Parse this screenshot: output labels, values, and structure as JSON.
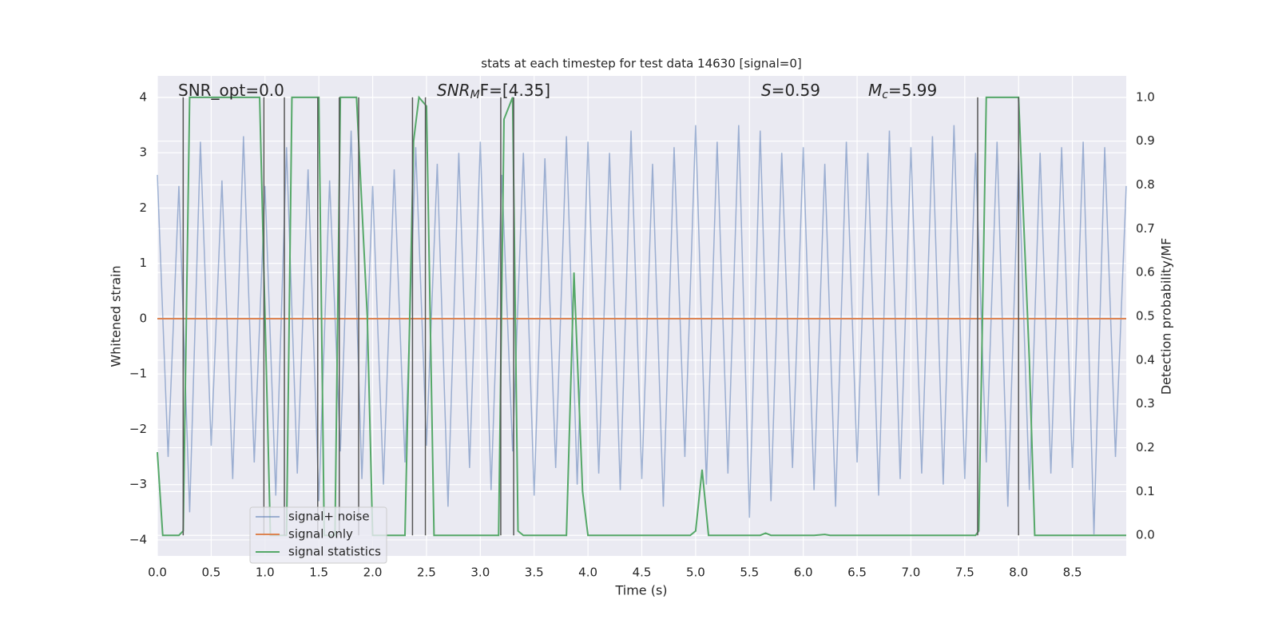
{
  "chart_data": {
    "type": "line",
    "title": "stats at each timestep for test data 14630 [signal=0]",
    "xlabel": "Time (s)",
    "ylabel": "Whitened strain",
    "y2label": "Detection probability/MF",
    "xlim": [
      0,
      9.0
    ],
    "ylim": [
      -4.29,
      4.39
    ],
    "y2lim": [
      -0.047,
      1.049
    ],
    "xticks": [
      {
        "value": 0,
        "label": "0.0"
      },
      0.5,
      {
        "value": 1,
        "label": "1.0"
      },
      1.5,
      {
        "value": 2,
        "label": "2.0"
      },
      2.5,
      {
        "value": 3,
        "label": "3.0"
      },
      3.5,
      {
        "value": 4,
        "label": "4.0"
      },
      4.5,
      {
        "value": 5,
        "label": "5.0"
      },
      5.5,
      {
        "value": 6,
        "label": "6.0"
      },
      6.5,
      {
        "value": 7,
        "label": "7.0"
      },
      7.5,
      {
        "value": 8,
        "label": "8.0"
      },
      8.5
    ],
    "yticks": [
      {
        "value": -4,
        "label": "−4"
      },
      {
        "value": -3,
        "label": "−3"
      },
      {
        "value": -2,
        "label": "−2"
      },
      {
        "value": -1,
        "label": "−1"
      },
      0,
      1,
      2,
      3,
      4
    ],
    "y2ticks": [
      {
        "value": 0,
        "label": "0.0"
      },
      0.1,
      0.2,
      0.3,
      0.4,
      0.5,
      0.6,
      0.7,
      0.8,
      0.9,
      {
        "value": 1,
        "label": "1.0"
      }
    ],
    "grid": true,
    "legend": "lower left",
    "series": [
      {
        "name": "signal+ noise",
        "color": "#4c72b0",
        "x": [
          0,
          0.1,
          0.2,
          0.3,
          0.4,
          0.5,
          0.6,
          0.7,
          0.8,
          0.9,
          1,
          1.1,
          1.2,
          1.3,
          1.4,
          1.5,
          1.6,
          1.7,
          1.8,
          1.9,
          2,
          2.1,
          2.2,
          2.3,
          2.4,
          2.5,
          2.6,
          2.7,
          2.8,
          2.9,
          3,
          3.1,
          3.2,
          3.3,
          3.4,
          3.5,
          3.6,
          3.7,
          3.8,
          3.9,
          4,
          4.1,
          4.2,
          4.3,
          4.4,
          4.5,
          4.6,
          4.7,
          4.8,
          4.9,
          5,
          5.1,
          5.2,
          5.3,
          5.4,
          5.5,
          5.6,
          5.7,
          5.8,
          5.9,
          6,
          6.1,
          6.2,
          6.3,
          6.4,
          6.5,
          6.6,
          6.7,
          6.8,
          6.9,
          7,
          7.1,
          7.2,
          7.3,
          7.4,
          7.5,
          7.6,
          7.7,
          7.8,
          7.9,
          8,
          8.1,
          8.2,
          8.3,
          8.4,
          8.5,
          8.6,
          8.7,
          8.8,
          8.9,
          9
        ],
        "values": [
          2.6,
          -2.5,
          2.4,
          -3.5,
          3.2,
          -2.3,
          2.5,
          -2.9,
          3.3,
          -2.6,
          2.4,
          -3.2,
          3.1,
          -2.8,
          2.7,
          -3.3,
          2.5,
          -2.4,
          3.4,
          -2.9,
          2.4,
          -3.0,
          2.7,
          -2.6,
          3.1,
          -2.3,
          2.8,
          -3.4,
          3.0,
          -2.7,
          3.2,
          -3.1,
          2.6,
          -2.4,
          3.0,
          -3.2,
          2.9,
          -2.7,
          3.3,
          -3.0,
          3.2,
          -2.8,
          3.0,
          -3.1,
          3.4,
          -2.9,
          2.8,
          -3.4,
          3.1,
          -2.5,
          3.5,
          -3.0,
          3.2,
          -2.8,
          3.5,
          -3.6,
          3.4,
          -3.3,
          3.0,
          -2.7,
          3.1,
          -3.1,
          2.8,
          -3.4,
          3.2,
          -2.6,
          3.0,
          -3.2,
          3.4,
          -2.9,
          3.1,
          -2.8,
          3.3,
          -3.0,
          3.5,
          -2.9,
          3.0,
          -2.6,
          3.2,
          -3.4,
          2.9,
          -3.1,
          3.0,
          -2.8,
          3.1,
          -2.7,
          3.2,
          -3.9,
          3.1,
          -2.5,
          2.4
        ]
      },
      {
        "name": "signal only",
        "color": "#dd8452",
        "x": [
          0,
          9.0
        ],
        "values": [
          0,
          0
        ]
      },
      {
        "name": "signal statistics",
        "color": "#55a868",
        "axis": "y2",
        "x": [
          0,
          0.05,
          0.2,
          0.24,
          0.3,
          0.95,
          1.0,
          1.05,
          1.2,
          1.25,
          1.5,
          1.55,
          1.65,
          1.7,
          1.85,
          1.95,
          2.0,
          2.3,
          2.38,
          2.43,
          2.5,
          2.57,
          3.17,
          3.22,
          3.3,
          3.35,
          3.4,
          3.8,
          3.87,
          3.95,
          4.0,
          4.95,
          5.0,
          5.06,
          5.12,
          5.6,
          5.65,
          5.7,
          6.1,
          6.2,
          6.25,
          7.6,
          7.63,
          7.7,
          8.0,
          8.1,
          8.15,
          9.0
        ],
        "values": [
          0.19,
          0.0,
          0.0,
          0.01,
          1.0,
          1.0,
          0.5,
          0.0,
          0.0,
          1.0,
          1.0,
          0.0,
          0.0,
          1.0,
          1.0,
          0.5,
          0.0,
          0.0,
          0.9,
          1.0,
          0.98,
          0.0,
          0.0,
          0.95,
          1.0,
          0.01,
          0.0,
          0.0,
          0.6,
          0.1,
          0.0,
          0.0,
          0.01,
          0.15,
          0.0,
          0.0,
          0.005,
          0.0,
          0.0,
          0.002,
          0.0,
          0.0,
          0.01,
          1.0,
          1.0,
          0.4,
          0.0,
          0.0
        ]
      }
    ],
    "vlines": {
      "color": "#555555",
      "x": [
        0.24,
        0.99,
        1.18,
        1.49,
        1.69,
        1.87,
        2.37,
        2.49,
        3.19,
        3.31,
        7.62,
        8.0
      ],
      "ymin": 0,
      "ymax": 1
    },
    "annotations": [
      {
        "rest": "SNR_opt=0.0"
      },
      {
        "base": "SNR",
        "sub": "M",
        "rest": "F=[4.35]"
      },
      {
        "base": "S",
        "rest": "=0.59"
      },
      {
        "base": "M",
        "sub": "c",
        "rest": "=5.99"
      }
    ]
  }
}
